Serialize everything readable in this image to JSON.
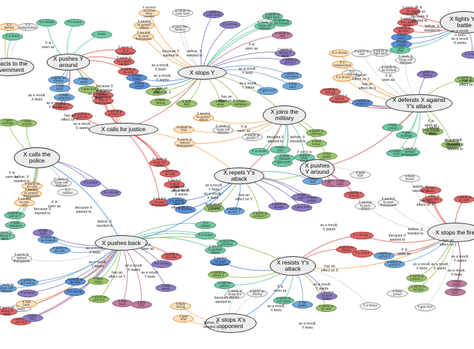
{
  "colors": {
    "xIntent": "#f6b26b",
    "xNeed": "#d9d9d9",
    "xAttr": "#6fc9a3",
    "xReact": "#5b8fd6",
    "xWant": "#e06666",
    "xEffect": "#9bc46a",
    "oReact": "#6fa8dc",
    "oWant": "#8e7cc3",
    "oEffect": "#c27ba0"
  },
  "events": [
    {
      "id": "e1",
      "text": "X stops Y"
    },
    {
      "id": "e2",
      "text": "X pushes Y around"
    },
    {
      "id": "e3",
      "text": "X calls for justice"
    },
    {
      "id": "e4",
      "text": "X calls the police"
    },
    {
      "id": "e5",
      "text": "X joins the military"
    },
    {
      "id": "e6",
      "text": "X repels Y's attack"
    },
    {
      "id": "e7",
      "text": "X pushes back"
    },
    {
      "id": "e8",
      "text": "X resists Y's attack"
    },
    {
      "id": "e9",
      "text": "X stops X's opponent"
    },
    {
      "id": "e10",
      "text": "X pushes Y around"
    },
    {
      "id": "e11",
      "text": "X defends X against Y's attack"
    },
    {
      "id": "e12",
      "text": "X stops the fire"
    },
    {
      "id": "e13",
      "text": "X fights Y's battle"
    },
    {
      "id": "e14",
      "text": "X reacts to the government"
    }
  ],
  "leaves": [
    {
      "id": "n1",
      "text": "X is skilled"
    },
    {
      "id": "n2",
      "text": "X is brave"
    },
    {
      "id": "n3",
      "text": "brave"
    },
    {
      "id": "n4",
      "text": "X wanted to serve their country"
    },
    {
      "id": "n5",
      "text": "X needs to train hard"
    },
    {
      "id": "n6",
      "text": "Y needs to train hard"
    },
    {
      "id": "n7",
      "text": "X wanted to protect others"
    },
    {
      "id": "n8",
      "text": "X joins the military"
    },
    {
      "id": "n9",
      "text": "X wanted to save themselves"
    },
    {
      "id": "n10",
      "text": "X wants to fix a relationship"
    },
    {
      "id": "n11",
      "text": "X wants to be a good person"
    },
    {
      "id": "n12",
      "text": "X wants to be safe"
    },
    {
      "id": "n13",
      "text": "X feels angry"
    },
    {
      "id": "n14",
      "text": "X feels proud"
    },
    {
      "id": "n15",
      "text": "Y gets mad"
    },
    {
      "id": "n16",
      "text": "X feels strong"
    },
    {
      "id": "n17",
      "text": "X gets hurt"
    },
    {
      "id": "n18",
      "text": "Y feels weak"
    },
    {
      "id": "n19",
      "text": "Y feels defeated"
    },
    {
      "id": "n20",
      "text": "Y gets hurt"
    },
    {
      "id": "n21",
      "text": "Y falls back"
    },
    {
      "id": "n22",
      "text": "Y wants to run home"
    },
    {
      "id": "n23",
      "text": "Y wants to yell at X"
    },
    {
      "id": "n24",
      "text": "Y wants to attack X again"
    },
    {
      "id": "n25",
      "text": "X wants to rest"
    },
    {
      "id": "n26",
      "text": "X wants to fight back"
    },
    {
      "id": "n27",
      "text": "X needs to know self defense"
    },
    {
      "id": "n28",
      "text": "X needs to be trained"
    },
    {
      "id": "n29",
      "text": "X is strong"
    },
    {
      "id": "n30",
      "text": "X is independent"
    },
    {
      "id": "n31",
      "text": "X is defiant"
    },
    {
      "id": "n32",
      "text": "X is brave"
    },
    {
      "id": "n33",
      "text": "X gains an enemy"
    },
    {
      "id": "n34",
      "text": "Y falls back"
    },
    {
      "id": "n35",
      "text": "Y gets hurt"
    },
    {
      "id": "n36",
      "text": "Y feels weak"
    },
    {
      "id": "n37",
      "text": "Y feels ashamed"
    },
    {
      "id": "n38",
      "text": "X wants to defend themselves"
    },
    {
      "id": "n39",
      "text": "X wants to escape"
    },
    {
      "id": "n40",
      "text": "X pushes Y around"
    },
    {
      "id": "n41",
      "text": "X makes a fool of themselves"
    },
    {
      "id": "n42",
      "text": "X wants to protect Y"
    },
    {
      "id": "n43",
      "text": "Y feels scared"
    },
    {
      "id": "n44",
      "text": "Y gets revenge"
    },
    {
      "id": "n45",
      "text": "X wanted to protect others"
    },
    {
      "id": "n46",
      "text": "X needs to know self defense"
    },
    {
      "id": "n47",
      "text": "X needs to train"
    },
    {
      "id": "n48",
      "text": "X wants to defend themselves"
    },
    {
      "id": "n49",
      "text": "X wants to punish Y"
    },
    {
      "id": "n50",
      "text": "X is heroic"
    },
    {
      "id": "n51",
      "text": "Y feels hurt"
    },
    {
      "id": "n52",
      "text": "Y gets hurt"
    },
    {
      "id": "n53",
      "text": "X feels relieved"
    },
    {
      "id": "n54",
      "text": "X wants to protect their family"
    },
    {
      "id": "n55",
      "text": "X wants to continue"
    },
    {
      "id": "n56",
      "text": "X feels brave"
    },
    {
      "id": "n57",
      "text": "X has power"
    },
    {
      "id": "n58",
      "text": "X needs to know fire safety"
    },
    {
      "id": "n59",
      "text": "X wants to be safe"
    },
    {
      "id": "n60",
      "text": "X wanted to save others"
    },
    {
      "id": "n61",
      "text": "X wanted to save themselves"
    },
    {
      "id": "n62",
      "text": "X is strong"
    },
    {
      "id": "n63",
      "text": "X is brave"
    },
    {
      "id": "n64",
      "text": "Y wants to yell at X"
    },
    {
      "id": "n65",
      "text": "X wants to punish Y"
    },
    {
      "id": "n66",
      "text": "X wants to protect Y"
    },
    {
      "id": "n67",
      "text": "X wants to escape"
    },
    {
      "id": "n68",
      "text": "Y feels angry"
    },
    {
      "id": "n69",
      "text": "Y feels hurt"
    },
    {
      "id": "n70",
      "text": "X feels proud"
    },
    {
      "id": "n71",
      "text": "Y gets hurt"
    },
    {
      "id": "n72",
      "text": "X gains an enemy"
    },
    {
      "id": "n73",
      "text": "Y falls back"
    },
    {
      "id": "n74",
      "text": "X gets hurt"
    },
    {
      "id": "n75",
      "text": "X pushes Y around"
    },
    {
      "id": "n76",
      "text": "X wants to be safe"
    },
    {
      "id": "n77",
      "text": "X wanted to protect themselves"
    },
    {
      "id": "n78",
      "text": "X wanted to stay safe"
    },
    {
      "id": "n79",
      "text": "X needs to know self defense"
    },
    {
      "id": "n80",
      "text": "X is defiant"
    },
    {
      "id": "n81",
      "text": "X is brave"
    },
    {
      "id": "n82",
      "text": "X is strong"
    },
    {
      "id": "n83",
      "text": "X wants to yell at Y"
    },
    {
      "id": "n84",
      "text": "Y feels defeated"
    },
    {
      "id": "n85",
      "text": "X wants to attack X again"
    },
    {
      "id": "n86",
      "text": "X falls back"
    },
    {
      "id": "n87",
      "text": "Y needs to be trained"
    },
    {
      "id": "n88",
      "text": "X wants to be safe"
    },
    {
      "id": "n89",
      "text": "X wants to defend themselves"
    },
    {
      "id": "n90",
      "text": "X wants to get justice"
    },
    {
      "id": "n91",
      "text": "X needs to know self defense"
    },
    {
      "id": "n92",
      "text": "X is heroic"
    },
    {
      "id": "n93",
      "text": "X feels angry"
    },
    {
      "id": "n94",
      "text": "Y wants to attack X again"
    },
    {
      "id": "n95",
      "text": "Y wants to yell at X"
    },
    {
      "id": "n96",
      "text": "X gets hurt"
    },
    {
      "id": "n97",
      "text": "X falls back"
    },
    {
      "id": "n98",
      "text": "X is defiant"
    },
    {
      "id": "n99",
      "text": "X is brave"
    },
    {
      "id": "n100",
      "text": "X joins the military"
    },
    {
      "id": "n101",
      "text": "X wanted to protect others"
    },
    {
      "id": "n102",
      "text": "X wanted to save themselves"
    },
    {
      "id": "n103",
      "text": "X wants to attack X"
    },
    {
      "id": "n104",
      "text": "X calls for justice"
    },
    {
      "id": "n105",
      "text": "X is strong"
    },
    {
      "id": "n106",
      "text": "X wants to be safe"
    },
    {
      "id": "n107",
      "text": "X feels angry"
    },
    {
      "id": "n108",
      "text": "Y wants to yell at X"
    },
    {
      "id": "n109",
      "text": "X wants to be safe"
    },
    {
      "id": "n110",
      "text": "X is strong"
    },
    {
      "id": "n111",
      "text": "X falls back"
    },
    {
      "id": "n112",
      "text": "X gets hurt"
    },
    {
      "id": "n113",
      "text": "Y feels weak"
    },
    {
      "id": "n114",
      "text": "X feels strong"
    },
    {
      "id": "n115",
      "text": "Y gets mad"
    },
    {
      "id": "n116",
      "text": "X gains an enemy"
    },
    {
      "id": "n117",
      "text": "X needs to know fire safety"
    },
    {
      "id": "n118",
      "text": "Y wants to run home"
    },
    {
      "id": "n119",
      "text": "X has power"
    },
    {
      "id": "n120",
      "text": "X wants to be safe"
    },
    {
      "id": "n121",
      "text": "X wanted to save others"
    },
    {
      "id": "n122",
      "text": "X is brave"
    },
    {
      "id": "n123",
      "text": "X gets better"
    },
    {
      "id": "n124",
      "text": "X gains an enemy"
    }
  ],
  "relations": [
    {
      "text": "X is\nseen as"
    },
    {
      "text": "because X\nwanted to"
    },
    {
      "text": "before, X\nneeded to"
    },
    {
      "text": "as a result,\nX feels"
    },
    {
      "text": "as a result,\nX wants"
    },
    {
      "text": "has an\neffect on X"
    },
    {
      "text": "as a result,\nY feels"
    },
    {
      "text": "as a result,\nY wants"
    },
    {
      "text": "has an\neffect on Y"
    },
    {
      "text": "X is\nseen as"
    },
    {
      "text": "because X\nwanted to"
    },
    {
      "text": "as a result,\nX feels"
    },
    {
      "text": "as a result,\nY wants"
    },
    {
      "text": "has an\neffect on Y"
    },
    {
      "text": "as a result,\nX wants"
    },
    {
      "text": "as a result,\nY feels"
    },
    {
      "text": "before, X\nneeded to"
    },
    {
      "text": "because X\nwanted to"
    },
    {
      "text": "X is\nseen as"
    },
    {
      "text": "as a result,\nX feels"
    },
    {
      "text": "has an\neffect on X"
    },
    {
      "text": "X is\nseen as"
    },
    {
      "text": "before, X\nneeded to"
    },
    {
      "text": "because X\nwanted to"
    },
    {
      "text": "X is\nseen as"
    },
    {
      "text": "as a result,\nY feels"
    },
    {
      "text": "as a result,\nY wants"
    },
    {
      "text": "has an\neffect on Y"
    },
    {
      "text": "as a result,\nX wants"
    },
    {
      "text": "has an\neffect on X"
    },
    {
      "text": "because X\nwanted to"
    },
    {
      "text": "before, X\nneeded to"
    },
    {
      "text": "X is\nseen as"
    },
    {
      "text": "as a result,\nX feels"
    },
    {
      "text": "as a result,\nY wants"
    },
    {
      "text": "has an\neffect on Y"
    },
    {
      "text": "as a result,\nX wants"
    },
    {
      "text": "as a result,\nY feels"
    },
    {
      "text": "before, X\nneeded to"
    },
    {
      "text": "because X\nwanted to"
    },
    {
      "text": "X is\nseen as"
    },
    {
      "text": "as a result,\nX feels"
    },
    {
      "text": "as a result,\nX wants"
    },
    {
      "text": "has an\neffect on X"
    },
    {
      "text": "as a result,\nY wants"
    },
    {
      "text": "as a result,\nY feels"
    },
    {
      "text": "X is\nseen as"
    },
    {
      "text": "because X\nwanted to"
    },
    {
      "text": "before, X\nneeded to"
    },
    {
      "text": "as a result,\nX feels"
    },
    {
      "text": "as a result,\nX wants"
    },
    {
      "text": "has an\neffect on Y"
    },
    {
      "text": "has an\neffect on X"
    },
    {
      "text": "X is\nseen as"
    },
    {
      "text": "X is\nseen as"
    },
    {
      "text": "as a result,\nY feels"
    },
    {
      "text": "as a result,\nY wants"
    },
    {
      "text": "has an\neffect on Y"
    },
    {
      "text": "because X\nwanted to"
    },
    {
      "text": "before, X\nneeded to"
    },
    {
      "text": "has an\neffect on X"
    },
    {
      "text": "before, X\nneeded to"
    },
    {
      "text": "because X\nwanted to"
    },
    {
      "text": "X is\nseen as"
    },
    {
      "text": "as a result,\nX feels"
    },
    {
      "text": "as a result,\nX wants"
    },
    {
      "text": "has an\neffect on Y"
    },
    {
      "text": "as a result,\nY wants"
    },
    {
      "text": "as a result,\nY feels"
    }
  ]
}
